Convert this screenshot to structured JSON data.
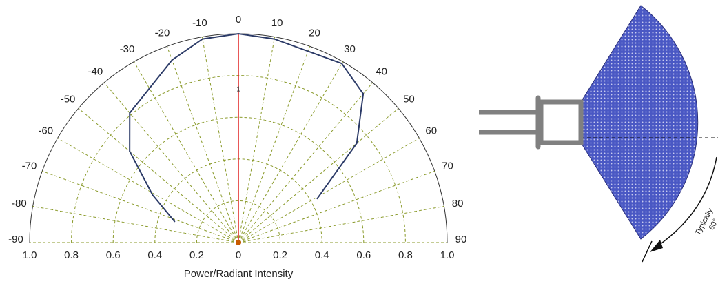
{
  "chart_data": {
    "type": "polar-half",
    "xlabel": "Power/Radiant Intensity",
    "annotation": "1",
    "x": [
      -72,
      -61,
      -50,
      -40,
      -20,
      -10,
      0,
      10,
      30,
      40,
      50,
      61
    ],
    "series": [
      {
        "color": "#2b3a67",
        "values": [
          0.32,
          0.47,
          0.68,
          0.81,
          0.93,
          0.99,
          1.0,
          0.99,
          0.99,
          0.93,
          0.74,
          0.43
        ]
      }
    ],
    "rlim": [
      0,
      1
    ],
    "rticks": [
      0,
      0.2,
      0.4,
      0.6,
      0.8,
      {
        "value": 1,
        "label": "1.0"
      }
    ],
    "thetalim": [
      -90,
      90
    ],
    "thetaticks": [
      -90,
      -80,
      -70,
      -60,
      -50,
      -40,
      -30,
      -20,
      -10,
      0,
      10,
      20,
      30,
      40,
      50,
      60,
      70,
      80,
      90
    ],
    "grid": true,
    "grid_color": "#8a9a2a",
    "axis_color": "#e02020"
  },
  "diagram": {
    "angle_label": [
      "Typically",
      "60°"
    ]
  }
}
